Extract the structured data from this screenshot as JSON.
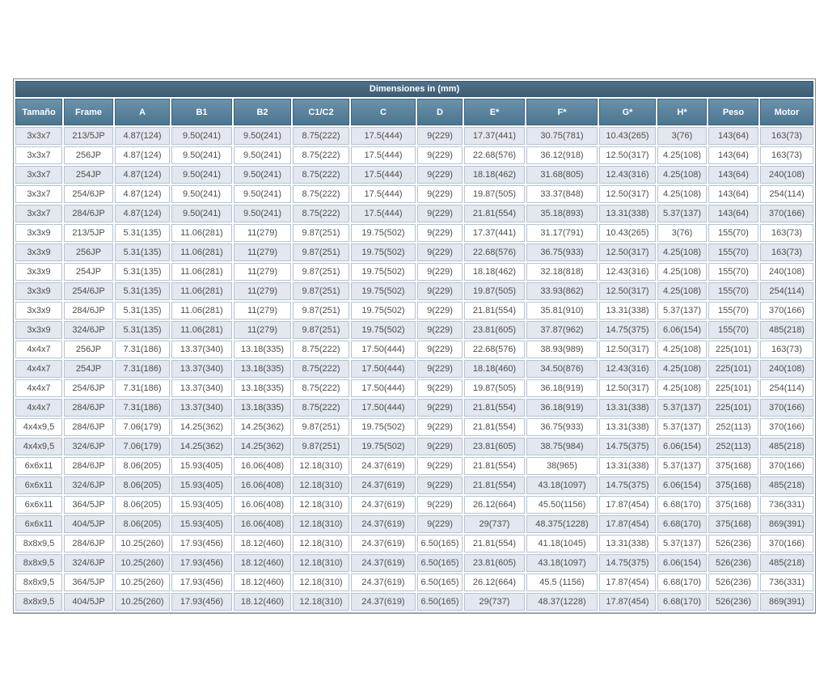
{
  "table": {
    "title": "Dimensiones in (mm)",
    "columns": [
      "Tamaño",
      "Frame",
      "A",
      "B1",
      "B2",
      "C1/C2",
      "C",
      "D",
      "E*",
      "F*",
      "G*",
      "H*",
      "Peso",
      "Motor"
    ],
    "rows": [
      [
        "3x3x7",
        "213/5JP",
        "4.87(124)",
        "9.50(241)",
        "9.50(241)",
        "8.75(222)",
        "17.5(444)",
        "9(229)",
        "17.37(441)",
        "30.75(781)",
        "10.43(265)",
        "3(76)",
        "143(64)",
        "163(73)"
      ],
      [
        "3x3x7",
        "256JP",
        "4.87(124)",
        "9.50(241)",
        "9.50(241)",
        "8.75(222)",
        "17.5(444)",
        "9(229)",
        "22.68(576)",
        "36.12(918)",
        "12.50(317)",
        "4.25(108)",
        "143(64)",
        "163(73)"
      ],
      [
        "3x3x7",
        "254JP",
        "4.87(124)",
        "9.50(241)",
        "9.50(241)",
        "8.75(222)",
        "17.5(444)",
        "9(229)",
        "18.18(462)",
        "31.68(805)",
        "12.43(316)",
        "4.25(108)",
        "143(64)",
        "240(108)"
      ],
      [
        "3x3x7",
        "254/6JP",
        "4.87(124)",
        "9.50(241)",
        "9.50(241)",
        "8.75(222)",
        "17.5(444)",
        "9(229)",
        "19.87(505)",
        "33.37(848)",
        "12.50(317)",
        "4.25(108)",
        "143(64)",
        "254(114)"
      ],
      [
        "3x3x7",
        "284/6JP",
        "4.87(124)",
        "9.50(241)",
        "9.50(241)",
        "8.75(222)",
        "17.5(444)",
        "9(229)",
        "21.81(554)",
        "35.18(893)",
        "13.31(338)",
        "5.37(137)",
        "143(64)",
        "370(166)"
      ],
      [
        "3x3x9",
        "213/5JP",
        "5.31(135)",
        "11.06(281)",
        "11(279)",
        "9.87(251)",
        "19.75(502)",
        "9(229)",
        "17.37(441)",
        "31.17(791)",
        "10.43(265)",
        "3(76)",
        "155(70)",
        "163(73)"
      ],
      [
        "3x3x9",
        "256JP",
        "5.31(135)",
        "11.06(281)",
        "11(279)",
        "9.87(251)",
        "19.75(502)",
        "9(229)",
        "22.68(576)",
        "36.75(933)",
        "12.50(317)",
        "4.25(108)",
        "155(70)",
        "163(73)"
      ],
      [
        "3x3x9",
        "254JP",
        "5.31(135)",
        "11.06(281)",
        "11(279)",
        "9.87(251)",
        "19.75(502)",
        "9(229)",
        "18.18(462)",
        "32.18(818)",
        "12.43(316)",
        "4.25(108)",
        "155(70)",
        "240(108)"
      ],
      [
        "3x3x9",
        "254/6JP",
        "5.31(135)",
        "11.06(281)",
        "11(279)",
        "9.87(251)",
        "19.75(502)",
        "9(229)",
        "19.87(505)",
        "33.93(862)",
        "12.50(317)",
        "4.25(108)",
        "155(70)",
        "254(114)"
      ],
      [
        "3x3x9",
        "284/6JP",
        "5.31(135)",
        "11.06(281)",
        "11(279)",
        "9.87(251)",
        "19.75(502)",
        "9(229)",
        "21.81(554)",
        "35.81(910)",
        "13.31(338)",
        "5.37(137)",
        "155(70)",
        "370(166)"
      ],
      [
        "3x3x9",
        "324/6JP",
        "5.31(135)",
        "11.06(281)",
        "11(279)",
        "9.87(251)",
        "19.75(502)",
        "9(229)",
        "23.81(605)",
        "37.87(962)",
        "14.75(375)",
        "6.06(154)",
        "155(70)",
        "485(218)"
      ],
      [
        "4x4x7",
        "256JP",
        "7.31(186)",
        "13.37(340)",
        "13.18(335)",
        "8.75(222)",
        "17.50(444)",
        "9(229)",
        "22.68(576)",
        "38.93(989)",
        "12.50(317)",
        "4.25(108)",
        "225(101)",
        "163(73)"
      ],
      [
        "4x4x7",
        "254JP",
        "7.31(186)",
        "13.37(340)",
        "13.18(335)",
        "8.75(222)",
        "17.50(444)",
        "9(229)",
        "18.18(460)",
        "34.50(876)",
        "12.43(316)",
        "4.25(108)",
        "225(101)",
        "240(108)"
      ],
      [
        "4x4x7",
        "254/6JP",
        "7.31(186)",
        "13.37(340)",
        "13.18(335)",
        "8.75(222)",
        "17.50(444)",
        "9(229)",
        "19.87(505)",
        "36.18(919)",
        "12.50(317)",
        "4.25(108)",
        "225(101)",
        "254(114)"
      ],
      [
        "4x4x7",
        "284/6JP",
        "7.31(186)",
        "13.37(340)",
        "13.18(335)",
        "8.75(222)",
        "17.50(444)",
        "9(229)",
        "21.81(554)",
        "36.18(919)",
        "13.31(338)",
        "5.37(137)",
        "225(101)",
        "370(166)"
      ],
      [
        "4x4x9,5",
        "284/6JP",
        "7.06(179)",
        "14.25(362)",
        "14.25(362)",
        "9.87(251)",
        "19.75(502)",
        "9(229)",
        "21.81(554)",
        "36.75(933)",
        "13.31(338)",
        "5.37(137)",
        "252(113)",
        "370(166)"
      ],
      [
        "4x4x9,5",
        "324/6JP",
        "7.06(179)",
        "14.25(362)",
        "14.25(362)",
        "9.87(251)",
        "19.75(502)",
        "9(229)",
        "23.81(605)",
        "38.75(984)",
        "14.75(375)",
        "6.06(154)",
        "252(113)",
        "485(218)"
      ],
      [
        "6x6x11",
        "284/6JP",
        "8.06(205)",
        "15.93(405)",
        "16.06(408)",
        "12.18(310)",
        "24.37(619)",
        "9(229)",
        "21.81(554)",
        "38(965)",
        "13.31(338)",
        "5.37(137)",
        "375(168)",
        "370(166)"
      ],
      [
        "6x6x11",
        "324/6JP",
        "8.06(205)",
        "15.93(405)",
        "16.06(408)",
        "12.18(310)",
        "24.37(619)",
        "9(229)",
        "21.81(554)",
        "43.18(1097)",
        "14.75(375)",
        "6.06(154)",
        "375(168)",
        "485(218)"
      ],
      [
        "6x6x11",
        "364/5JP",
        "8.06(205)",
        "15.93(405)",
        "16.06(408)",
        "12.18(310)",
        "24.37(619)",
        "9(229)",
        "26.12(664)",
        "45.50(1156)",
        "17.87(454)",
        "6.68(170)",
        "375(168)",
        "736(331)"
      ],
      [
        "6x6x11",
        "404/5JP",
        "8.06(205)",
        "15.93(405)",
        "16.06(408)",
        "12.18(310)",
        "24.37(619)",
        "9(229)",
        "29(737)",
        "48.375(1228)",
        "17.87(454)",
        "6.68(170)",
        "375(168)",
        "869(391)"
      ],
      [
        "8x8x9,5",
        "284/6JP",
        "10.25(260)",
        "17.93(456)",
        "18.12(460)",
        "12.18(310)",
        "24.37(619)",
        "6.50(165)",
        "21.81(554)",
        "41.18(1045)",
        "13.31(338)",
        "5.37(137)",
        "526(236)",
        "370(166)"
      ],
      [
        "8x8x9,5",
        "324/6JP",
        "10.25(260)",
        "17.93(456)",
        "18.12(460)",
        "12.18(310)",
        "24.37(619)",
        "6.50(165)",
        "23.81(605)",
        "43.18(1097)",
        "14.75(375)",
        "6.06(154)",
        "526(236)",
        "485(218)"
      ],
      [
        "8x8x9,5",
        "364/5JP",
        "10.25(260)",
        "17.93(456)",
        "18.12(460)",
        "12.18(310)",
        "24.37(619)",
        "6.50(165)",
        "26.12(664)",
        "45.5 (1156)",
        "17.87(454)",
        "6.68(170)",
        "526(236)",
        "736(331)"
      ],
      [
        "8x8x9,5",
        "404/5JP",
        "10.25(260)",
        "17.93(456)",
        "18.12(460)",
        "12.18(310)",
        "24.37(619)",
        "6.50(165)",
        "29(737)",
        "48.37(1228)",
        "17.87(454)",
        "6.68(170)",
        "526(236)",
        "869(391)"
      ]
    ]
  },
  "colors": {
    "title_bar": "#43627a",
    "header_top": "#6b92ab",
    "header_bottom": "#4c7590",
    "row_shaded": "#e3e7ef",
    "row_plain": "#ffffff",
    "grid_border": "#b3c3d3",
    "header_text": "#ffffff",
    "cell_text": "#4d4d4d"
  }
}
